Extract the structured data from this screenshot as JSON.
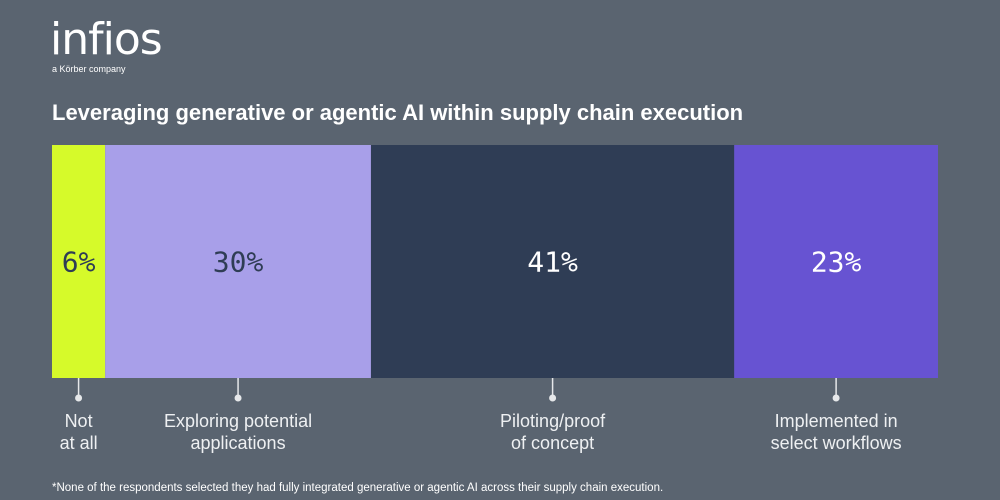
{
  "header": {
    "logo": "infios",
    "tagline": "a Körber company"
  },
  "chart_data": {
    "type": "stacked-bar",
    "title": "Leveraging generative or agentic AI within supply chain execution",
    "categories": [
      "Not\nat all",
      "Exploring potential\napplications",
      "Piloting/proof\nof concept",
      "Implemented in\nselect workflows"
    ],
    "values": [
      6,
      30,
      41,
      23
    ],
    "value_labels": [
      "6%",
      "30%",
      "41%",
      "23%"
    ],
    "colors": [
      "#d6fa2a",
      "#a89fe9",
      "#2f3d55",
      "#6753d2"
    ],
    "label_colors": [
      "#2f3d55",
      "#2f3d55",
      "#ffffff",
      "#ffffff"
    ]
  },
  "footnote": "*None of the respondents selected they had fully integrated generative or agentic AI across their supply chain execution."
}
